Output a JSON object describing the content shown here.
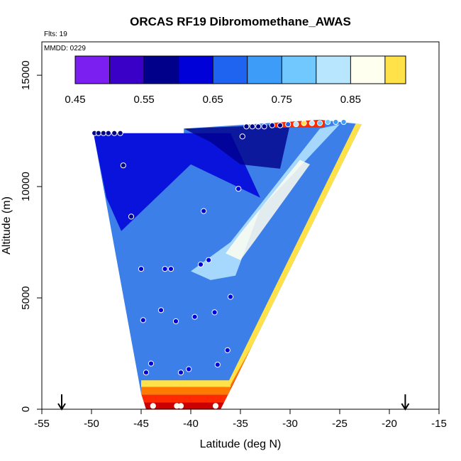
{
  "chart_data": {
    "type": "heatmap",
    "title": "ORCAS RF19 Dibromomethane_AWAS",
    "annotations": {
      "flights": "Flts: 19",
      "date": "MMDD: 0229"
    },
    "xlabel": "Latitude (deg N)",
    "ylabel": "Altitude (m)",
    "xlim": [
      -55,
      -15
    ],
    "ylim": [
      0,
      16500
    ],
    "x_ticks": [
      -55,
      -50,
      -45,
      -40,
      -35,
      -30,
      -25,
      -20,
      -15
    ],
    "x_tick_labels": [
      "-55",
      "-50",
      "-45",
      "-40",
      "-35",
      "-30",
      "-25",
      "-20",
      "-15"
    ],
    "y_ticks": [
      0,
      5000,
      10000,
      15000
    ],
    "y_tick_labels": [
      "0",
      "5000",
      "10000",
      "15000"
    ],
    "colorbar": {
      "min": 0.45,
      "max": 0.93,
      "step": 0.05,
      "colors": [
        "#7a1ff0",
        "#3a00c8",
        "#00008a",
        "#0000d8",
        "#1e64f0",
        "#3d9cf8",
        "#70c8ff",
        "#b8e6ff",
        "#fffff0",
        "#ffe14a",
        "#ffb300",
        "#ff7a00",
        "#ff2a00",
        "#cc0000",
        "#a01515"
      ],
      "tick_values": [
        0.45,
        0.55,
        0.65,
        0.75,
        0.85
      ],
      "tick_labels": [
        "0.45",
        "0.55",
        "0.65",
        "0.75",
        "0.85"
      ]
    },
    "domain_polygon": [
      [
        -49.8,
        12400
      ],
      [
        -45,
        700
      ],
      [
        -44.5,
        0
      ],
      [
        -37,
        0
      ],
      [
        -36.2,
        700
      ],
      [
        -22.8,
        12800
      ],
      [
        -27,
        13000
      ],
      [
        -40.7,
        12600
      ],
      [
        -40.7,
        12400
      ]
    ],
    "points": [
      {
        "lat": -49.7,
        "alt": 12400,
        "v": 0.55
      },
      {
        "lat": -49.3,
        "alt": 12400,
        "v": 0.55
      },
      {
        "lat": -48.8,
        "alt": 12400,
        "v": 0.55
      },
      {
        "lat": -48.3,
        "alt": 12400,
        "v": 0.55
      },
      {
        "lat": -47.7,
        "alt": 12400,
        "v": 0.55
      },
      {
        "lat": -47.1,
        "alt": 12400,
        "v": 0.55
      },
      {
        "lat": -46.8,
        "alt": 10950,
        "v": 0.6
      },
      {
        "lat": -46.0,
        "alt": 8650,
        "v": 0.6
      },
      {
        "lat": -45.0,
        "alt": 6300,
        "v": 0.62
      },
      {
        "lat": -44.8,
        "alt": 4000,
        "v": 0.62
      },
      {
        "lat": -44.0,
        "alt": 2050,
        "v": 0.62
      },
      {
        "lat": -44.5,
        "alt": 1650,
        "v": 0.63
      },
      {
        "lat": -43.0,
        "alt": 4450,
        "v": 0.62
      },
      {
        "lat": -42.6,
        "alt": 6300,
        "v": 0.62
      },
      {
        "lat": -42.0,
        "alt": 6300,
        "v": 0.62
      },
      {
        "lat": -41.5,
        "alt": 3950,
        "v": 0.62
      },
      {
        "lat": -41.0,
        "alt": 1650,
        "v": 0.62
      },
      {
        "lat": -40.2,
        "alt": 1800,
        "v": 0.62
      },
      {
        "lat": -39.6,
        "alt": 4150,
        "v": 0.62
      },
      {
        "lat": -39.0,
        "alt": 6500,
        "v": 0.64
      },
      {
        "lat": -38.2,
        "alt": 6700,
        "v": 0.64
      },
      {
        "lat": -38.7,
        "alt": 8900,
        "v": 0.64
      },
      {
        "lat": -37.6,
        "alt": 4350,
        "v": 0.62
      },
      {
        "lat": -37.3,
        "alt": 2000,
        "v": 0.62
      },
      {
        "lat": -36.3,
        "alt": 2650,
        "v": 0.62
      },
      {
        "lat": -36.0,
        "alt": 5050,
        "v": 0.62
      },
      {
        "lat": -35.2,
        "alt": 9900,
        "v": 0.62
      },
      {
        "lat": -34.8,
        "alt": 12250,
        "v": 0.55
      },
      {
        "lat": -34.4,
        "alt": 12700,
        "v": 0.55
      },
      {
        "lat": -33.8,
        "alt": 12700,
        "v": 0.55
      },
      {
        "lat": -33.2,
        "alt": 12700,
        "v": 0.55
      },
      {
        "lat": -32.6,
        "alt": 12700,
        "v": 0.55
      },
      {
        "lat": -31.8,
        "alt": 12750,
        "v": 0.55
      },
      {
        "lat": -31.0,
        "alt": 12750,
        "v": 0.6
      },
      {
        "lat": -30.2,
        "alt": 12800,
        "v": 0.7
      },
      {
        "lat": -29.4,
        "alt": 12800,
        "v": 0.8
      },
      {
        "lat": -28.6,
        "alt": 12850,
        "v": 0.9
      },
      {
        "lat": -27.8,
        "alt": 12850,
        "v": 0.8
      },
      {
        "lat": -27.0,
        "alt": 12850,
        "v": 0.78
      },
      {
        "lat": -26.2,
        "alt": 12900,
        "v": 0.76
      },
      {
        "lat": -25.4,
        "alt": 12900,
        "v": 0.74
      },
      {
        "lat": -24.6,
        "alt": 12900,
        "v": 0.72
      },
      {
        "lat": -43.8,
        "alt": 150,
        "v": 0.86
      },
      {
        "lat": -41.4,
        "alt": 150,
        "v": 0.86
      },
      {
        "lat": -41.0,
        "alt": 150,
        "v": 0.86
      },
      {
        "lat": -37.5,
        "alt": 150,
        "v": 0.86
      }
    ],
    "arrows": [
      {
        "lat": -53.0,
        "direction": "down"
      },
      {
        "lat": -18.4,
        "direction": "down"
      }
    ]
  }
}
